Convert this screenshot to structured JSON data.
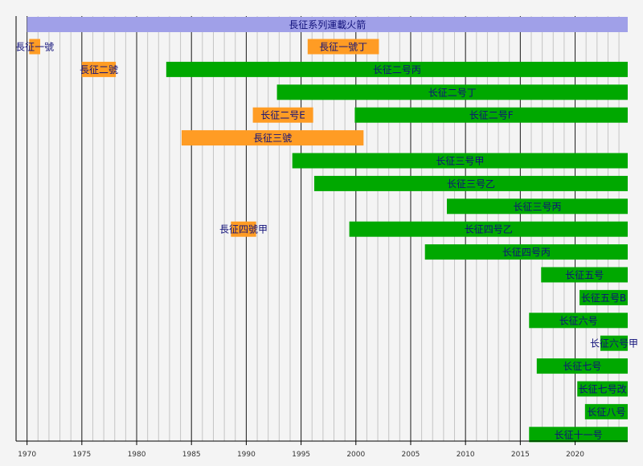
{
  "chart_data": {
    "type": "timeline",
    "title": "長征系列運載火箭",
    "x_range": [
      1969,
      2024.8
    ],
    "ticks": [
      1970,
      1975,
      1980,
      1985,
      1990,
      1995,
      2000,
      2005,
      2010,
      2015,
      2020
    ],
    "grid": true,
    "legend": "none",
    "bars": [
      {
        "label": "長征一號",
        "start": 1970.2,
        "end": 1971.2,
        "status": "retired"
      },
      {
        "label": "長征一號丁",
        "start": 1995.6,
        "end": 2002.1,
        "status": "retired"
      },
      {
        "label": "長征二號",
        "start": 1975.0,
        "end": 1978.1,
        "status": "retired"
      },
      {
        "label": "长征二号丙",
        "start": 1982.7,
        "end": 2024.8,
        "status": "active"
      },
      {
        "label": "长征二号丁",
        "start": 1992.8,
        "end": 2024.8,
        "status": "active"
      },
      {
        "label": "长征二号E",
        "start": 1990.6,
        "end": 1996.1,
        "status": "retired"
      },
      {
        "label": "长征二号F",
        "start": 1999.9,
        "end": 2024.8,
        "status": "active"
      },
      {
        "label": "長征三號",
        "start": 1984.1,
        "end": 2000.7,
        "status": "retired"
      },
      {
        "label": "长征三号甲",
        "start": 1994.2,
        "end": 2024.8,
        "status": "active"
      },
      {
        "label": "长征三号乙",
        "start": 1996.2,
        "end": 2024.8,
        "status": "active"
      },
      {
        "label": "长征三号丙",
        "start": 2008.3,
        "end": 2024.8,
        "status": "active"
      },
      {
        "label": "長征四號甲",
        "start": 1988.6,
        "end": 1990.9,
        "status": "retired"
      },
      {
        "label": "长征四号乙",
        "start": 1999.4,
        "end": 2024.8,
        "status": "active"
      },
      {
        "label": "长征四号丙",
        "start": 2006.3,
        "end": 2024.8,
        "status": "active"
      },
      {
        "label": "长征五号",
        "start": 2016.9,
        "end": 2024.8,
        "status": "active"
      },
      {
        "label": "长征五号B",
        "start": 2020.4,
        "end": 2024.8,
        "status": "active"
      },
      {
        "label": "长征六号",
        "start": 2015.8,
        "end": 2024.8,
        "status": "active"
      },
      {
        "label": "长征六号甲",
        "start": 2022.3,
        "end": 2024.8,
        "status": "active"
      },
      {
        "label": "长征七号",
        "start": 2016.5,
        "end": 2024.8,
        "status": "active"
      },
      {
        "label": "长征七号改",
        "start": 2020.2,
        "end": 2024.8,
        "status": "active"
      },
      {
        "label": "长征八号",
        "start": 2020.9,
        "end": 2024.8,
        "status": "active"
      },
      {
        "label": "长征十一号",
        "start": 2015.8,
        "end": 2024.8,
        "status": "active"
      }
    ],
    "rows": [
      [
        0,
        1
      ],
      [
        2,
        3
      ],
      [
        4
      ],
      [
        5,
        6
      ],
      [
        7
      ],
      [
        8
      ],
      [
        9
      ],
      [
        10
      ],
      [
        11,
        12
      ],
      [
        13
      ],
      [
        14
      ],
      [
        15
      ],
      [
        16
      ],
      [
        17
      ],
      [
        18
      ],
      [
        19
      ],
      [
        20
      ],
      [
        21
      ]
    ]
  },
  "colors": {
    "active": "#00a800",
    "retired": "#ff9c24",
    "title_bar": "#a0a0e8",
    "label": "#10107a",
    "background": "#f4f4f4"
  }
}
